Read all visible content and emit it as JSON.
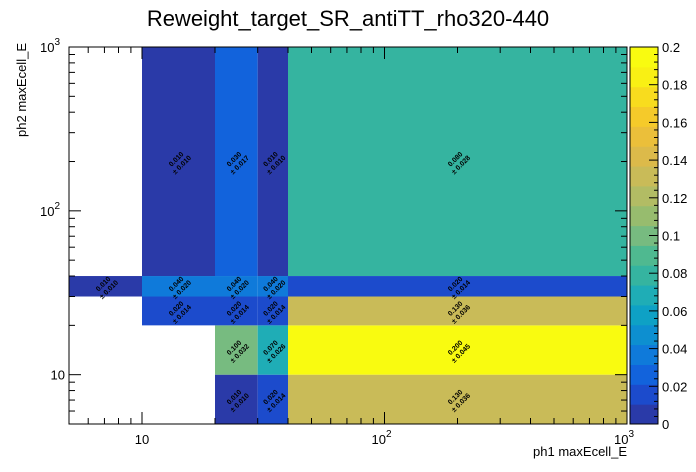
{
  "chart_data": {
    "type": "heatmap",
    "title": "Reweight_target_SR_antiTT_rho320-440",
    "xlabel": "ph1 maxEcell_E",
    "ylabel": "ph2 maxEcell_E",
    "x_scale": "log",
    "y_scale": "log",
    "xlim": [
      5,
      1000
    ],
    "ylim": [
      5,
      1000
    ],
    "x_edges": [
      5,
      10,
      20,
      30,
      40,
      1000
    ],
    "y_edges": [
      5,
      10,
      20,
      30,
      40,
      1000
    ],
    "x_tick_labels": [
      {
        "value": 10,
        "base": "10",
        "exp": ""
      },
      {
        "value": 100,
        "base": "10",
        "exp": "2"
      },
      {
        "value": 1000,
        "base": "10",
        "exp": "3"
      }
    ],
    "y_tick_labels": [
      {
        "value": 10,
        "base": "10",
        "exp": ""
      },
      {
        "value": 100,
        "base": "10",
        "exp": "2"
      },
      {
        "value": 1000,
        "base": "10",
        "exp": "3"
      }
    ],
    "cells": [
      {
        "x": [
          5,
          10
        ],
        "y": [
          30,
          40
        ],
        "value": 0.01,
        "label": "0.010",
        "error": "± 0.010"
      },
      {
        "x": [
          10,
          20
        ],
        "y": [
          20,
          30
        ],
        "value": 0.02,
        "label": "0.020",
        "error": "± 0.014"
      },
      {
        "x": [
          10,
          20
        ],
        "y": [
          30,
          40
        ],
        "value": 0.04,
        "label": "0.040",
        "error": "± 0.020"
      },
      {
        "x": [
          10,
          20
        ],
        "y": [
          40,
          1000
        ],
        "value": 0.01,
        "label": "0.010",
        "error": "± 0.010"
      },
      {
        "x": [
          20,
          30
        ],
        "y": [
          5,
          10
        ],
        "value": 0.01,
        "label": "0.010",
        "error": "± 0.010"
      },
      {
        "x": [
          20,
          30
        ],
        "y": [
          10,
          20
        ],
        "value": 0.1,
        "label": "0.100",
        "error": "± 0.032"
      },
      {
        "x": [
          20,
          30
        ],
        "y": [
          20,
          30
        ],
        "value": 0.02,
        "label": "0.020",
        "error": "± 0.014"
      },
      {
        "x": [
          20,
          30
        ],
        "y": [
          30,
          40
        ],
        "value": 0.04,
        "label": "0.040",
        "error": "± 0.020"
      },
      {
        "x": [
          20,
          30
        ],
        "y": [
          40,
          1000
        ],
        "value": 0.03,
        "label": "0.030",
        "error": "± 0.017"
      },
      {
        "x": [
          30,
          40
        ],
        "y": [
          5,
          10
        ],
        "value": 0.02,
        "label": "0.020",
        "error": "± 0.014"
      },
      {
        "x": [
          30,
          40
        ],
        "y": [
          10,
          20
        ],
        "value": 0.07,
        "label": "0.070",
        "error": "± 0.026"
      },
      {
        "x": [
          30,
          40
        ],
        "y": [
          20,
          30
        ],
        "value": 0.02,
        "label": "0.020",
        "error": "± 0.014"
      },
      {
        "x": [
          30,
          40
        ],
        "y": [
          30,
          40
        ],
        "value": 0.04,
        "label": "0.040",
        "error": "± 0.020"
      },
      {
        "x": [
          30,
          40
        ],
        "y": [
          40,
          1000
        ],
        "value": 0.01,
        "label": "0.010",
        "error": "± 0.010"
      },
      {
        "x": [
          40,
          1000
        ],
        "y": [
          5,
          10
        ],
        "value": 0.13,
        "label": "0.130",
        "error": "± 0.036"
      },
      {
        "x": [
          40,
          1000
        ],
        "y": [
          10,
          20
        ],
        "value": 0.2,
        "label": "0.200",
        "error": "± 0.045"
      },
      {
        "x": [
          40,
          1000
        ],
        "y": [
          20,
          30
        ],
        "value": 0.13,
        "label": "0.130",
        "error": "± 0.036"
      },
      {
        "x": [
          40,
          1000
        ],
        "y": [
          30,
          40
        ],
        "value": 0.02,
        "label": "0.020",
        "error": "± 0.014"
      },
      {
        "x": [
          40,
          1000
        ],
        "y": [
          40,
          1000
        ],
        "value": 0.08,
        "label": "0.080",
        "error": "± 0.028"
      }
    ],
    "colorbar": {
      "zlim": [
        0,
        0.2
      ],
      "tick_labels": [
        "0",
        "0.02",
        "0.04",
        "0.06",
        "0.08",
        "0.1",
        "0.12",
        "0.14",
        "0.16",
        "0.18",
        "0.2"
      ],
      "colors": [
        "#2a3aa8",
        "#1c4bcc",
        "#1263dc",
        "#0f7ada",
        "#0d8fd0",
        "#0ea1c5",
        "#1fadb6",
        "#35b4a0",
        "#4fb990",
        "#77bb80",
        "#97bc6e",
        "#b2bc64",
        "#c9bb58",
        "#dcba4a",
        "#ebbf3a",
        "#f5ca2a",
        "#f8dc1e",
        "#f9f014",
        "#f9fb10"
      ]
    }
  }
}
